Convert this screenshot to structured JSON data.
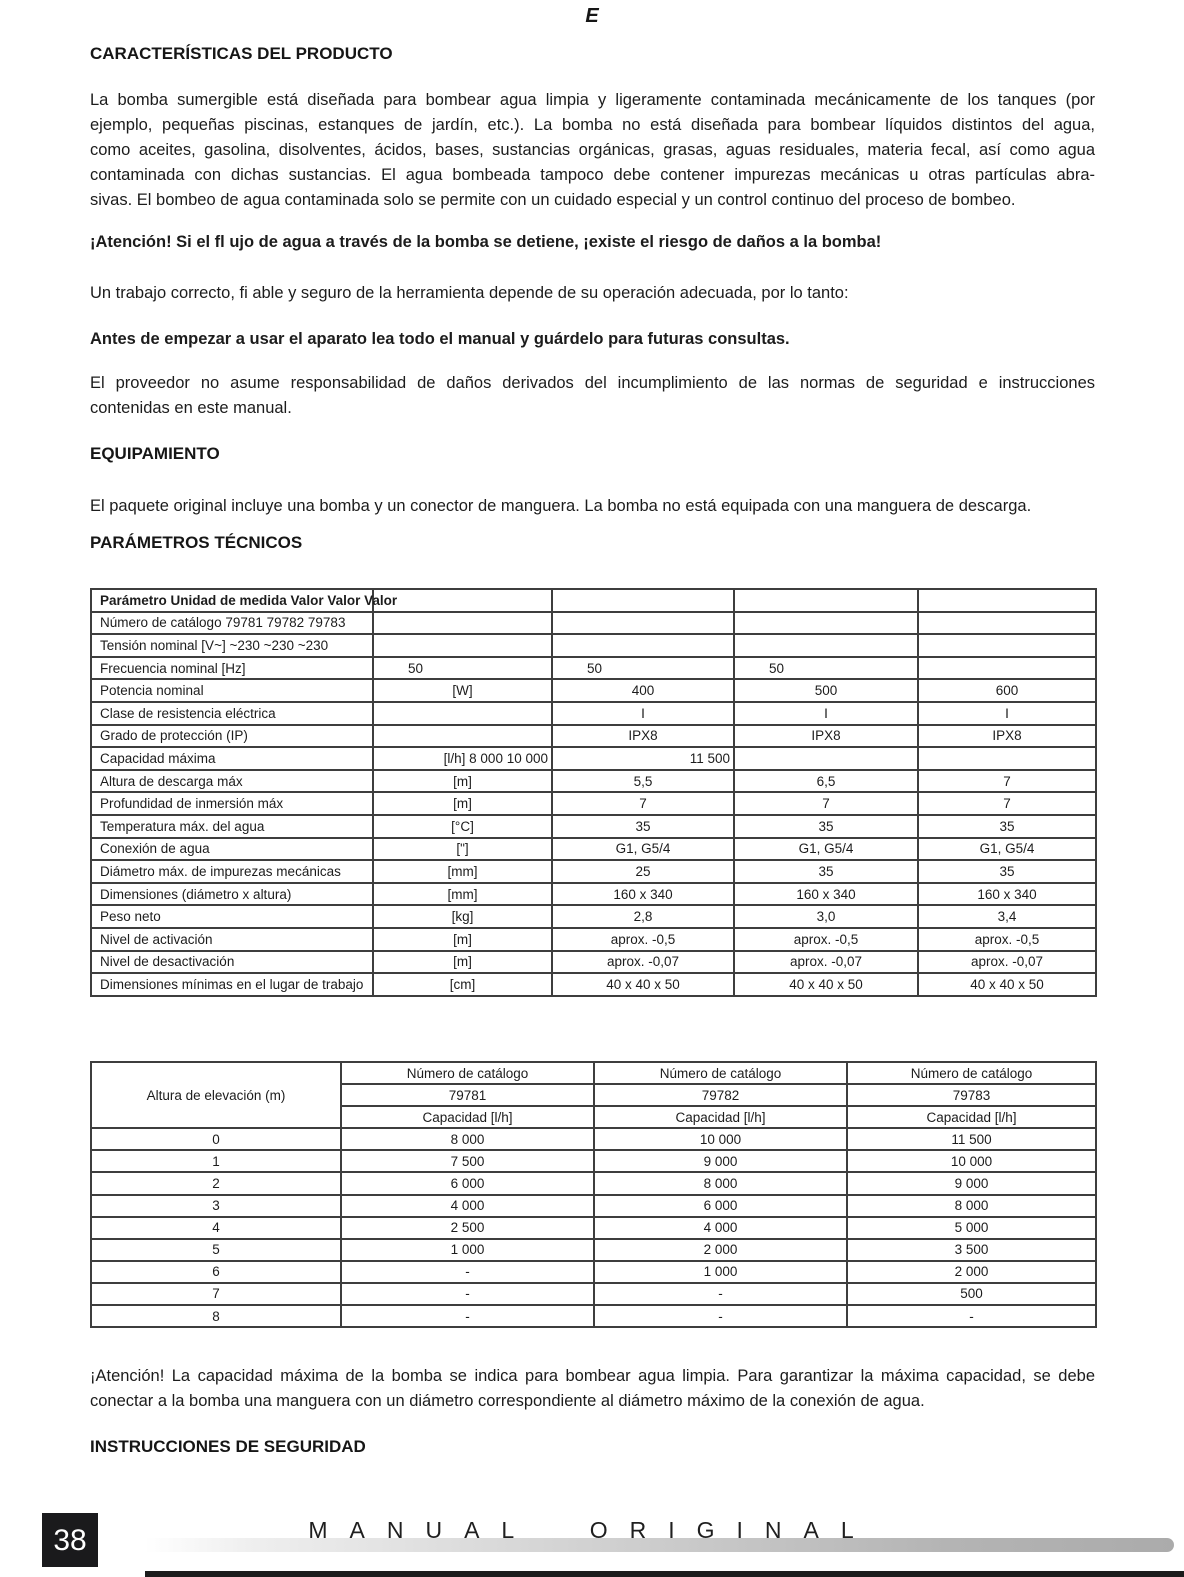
{
  "page": {
    "language_marker": "E"
  },
  "headings": {
    "caracteristicas": "CARACTERÍSTICAS DEL PRODUCTO",
    "equipamiento": "EQUIPAMIENTO",
    "parametros": "PARÁMETROS TÉCNICOS",
    "instrucciones": "INSTRUCCIONES DE SEGURIDAD"
  },
  "paragraphs": {
    "descripcion_lines": [
      "La bomba sumergible está diseñada para bombear agua limpia y ligeramente contaminada mecánicamente de los tanques (por",
      "ejemplo, pequeñas piscinas, estanques de jardín, etc.). La bomba no está diseñada para bombear líquidos distintos del agua,",
      "como aceites, gasolina, disolventes, ácidos, bases, sustancias orgánicas, grasas, aguas residuales, materia fecal, así como agua",
      "contaminada con dichas sustancias. El agua bombeada tampoco debe contener impurezas mecánicas u otras partículas abra-",
      "sivas. El bombeo de agua contaminada solo se permite con un cuidado especial y un control continuo del proceso de bombeo."
    ],
    "atencion_bomba": "¡Atención! Si el fl ujo de agua a través de la bomba se detiene, ¡existe el riesgo de daños a la bomba!",
    "trabajo_correcto": "Un trabajo correcto, fi able y seguro de la herramienta depende de su operación adecuada, por lo tanto:",
    "antes_de_empezar": "Antes de empezar a usar el aparato lea todo el manual y guárdelo para futuras consultas.",
    "proveedor_lines": [
      "El proveedor no asume responsabilidad de daños derivados del incumplimiento de las normas de seguridad e instrucciones",
      "contenidas en este manual."
    ],
    "paquete": "El paquete original incluye una bomba y un conector de manguera. La bomba no está equipada con una manguera de descarga.",
    "atencion_capacidad_lines": [
      "¡Atención! La capacidad máxima de la bomba se indica para bombear agua limpia. Para garantizar la máxima capacidad, se debe",
      "conectar a la bomba una manguera con un diámetro correspondiente al diámetro máximo de la conexión de agua."
    ]
  },
  "table1": {
    "rows": [
      [
        {
          "t": "Parámetro Unidad de medida Valor Valor Valor",
          "cls": "cl b nw"
        },
        "",
        "",
        "",
        ""
      ],
      [
        {
          "t": "Número de catálogo 79781 79782 79783",
          "cls": "cl nw"
        },
        "",
        "",
        "",
        ""
      ],
      [
        {
          "t": "Tensión nominal [V~] ~230 ~230 ~230",
          "cls": "cl nw"
        },
        "",
        "",
        "",
        ""
      ],
      [
        {
          "t": "Frecuencia nominal [Hz]",
          "cls": "cl"
        },
        {
          "t": "50",
          "cls": "lp"
        },
        {
          "t": "50",
          "cls": "lp"
        },
        {
          "t": "50",
          "cls": "lp"
        },
        ""
      ],
      [
        {
          "t": "Potencia nominal",
          "cls": "cl"
        },
        "[W]",
        "400",
        "500",
        "600"
      ],
      [
        {
          "t": "Clase de resistencia eléctrica",
          "cls": "cl"
        },
        "",
        "I",
        "I",
        "I"
      ],
      [
        {
          "t": "Grado de protección (IP)",
          "cls": "cl"
        },
        "",
        "IPX8",
        "IPX8",
        "IPX8"
      ],
      [
        {
          "t": "Capacidad máxima",
          "cls": "cl"
        },
        {
          "t": "[l/h] 8 000 10 000",
          "cls": "cr nw"
        },
        {
          "t": "11 500",
          "cls": "cr"
        },
        "",
        ""
      ],
      [
        {
          "t": "Altura de descarga máx",
          "cls": "cl"
        },
        "[m]",
        "5,5",
        "6,5",
        "7"
      ],
      [
        {
          "t": "Profundidad de inmersión máx",
          "cls": "cl"
        },
        "[m]",
        "7",
        "7",
        "7"
      ],
      [
        {
          "t": "Temperatura máx. del agua",
          "cls": "cl"
        },
        "[°C]",
        "35",
        "35",
        "35"
      ],
      [
        {
          "t": "Conexión de agua",
          "cls": "cl"
        },
        "[\"]",
        "G1, G5/4",
        "G1, G5/4",
        "G1, G5/4"
      ],
      [
        {
          "t": "Diámetro máx. de impurezas mecánicas",
          "cls": "cl"
        },
        "[mm]",
        "25",
        "35",
        "35"
      ],
      [
        {
          "t": "Dimensiones (diámetro x altura)",
          "cls": "cl"
        },
        "[mm]",
        "160 x 340",
        "160 x 340",
        "160 x 340"
      ],
      [
        {
          "t": "Peso neto",
          "cls": "cl"
        },
        "[kg]",
        "2,8",
        "3,0",
        "3,4"
      ],
      [
        {
          "t": "Nivel de activación",
          "cls": "cl"
        },
        "[m]",
        "aprox. -0,5",
        "aprox. -0,5",
        "aprox. -0,5"
      ],
      [
        {
          "t": "Nivel de desactivación",
          "cls": "cl"
        },
        "[m]",
        "aprox. -0,07",
        "aprox. -0,07",
        "aprox. -0,07"
      ],
      [
        {
          "t": "Dimensiones mínimas en el lugar de trabajo",
          "cls": "cl"
        },
        "[cm]",
        "40 x 40 x 50",
        "40 x 40 x 50",
        "40 x 40 x 50"
      ]
    ]
  },
  "table2": {
    "rows": [
      [
        {
          "t": "Altura de elevación (m)",
          "span": 3
        },
        "Número de catálogo",
        "Número de catálogo",
        "Número de catálogo"
      ],
      [
        "79781",
        "79782",
        "79783"
      ],
      [
        "Capacidad [l/h]",
        "Capacidad [l/h]",
        "Capacidad [l/h]"
      ],
      [
        "0",
        "8 000",
        "10 000",
        "11 500"
      ],
      [
        "1",
        "7 500",
        "9 000",
        "10 000"
      ],
      [
        "2",
        "6 000",
        "8 000",
        "9 000"
      ],
      [
        "3",
        "4 000",
        "6 000",
        "8 000"
      ],
      [
        "4",
        "2 500",
        "4 000",
        "5 000"
      ],
      [
        "5",
        "1 000",
        "2 000",
        "3 500"
      ],
      [
        "6",
        "-",
        "1 000",
        "2 000"
      ],
      [
        "7",
        "-",
        "-",
        "500"
      ],
      [
        "8",
        "-",
        "-",
        "-"
      ]
    ]
  },
  "footer": {
    "page_number": "38",
    "title": "MANUAL ORIGINAL"
  }
}
